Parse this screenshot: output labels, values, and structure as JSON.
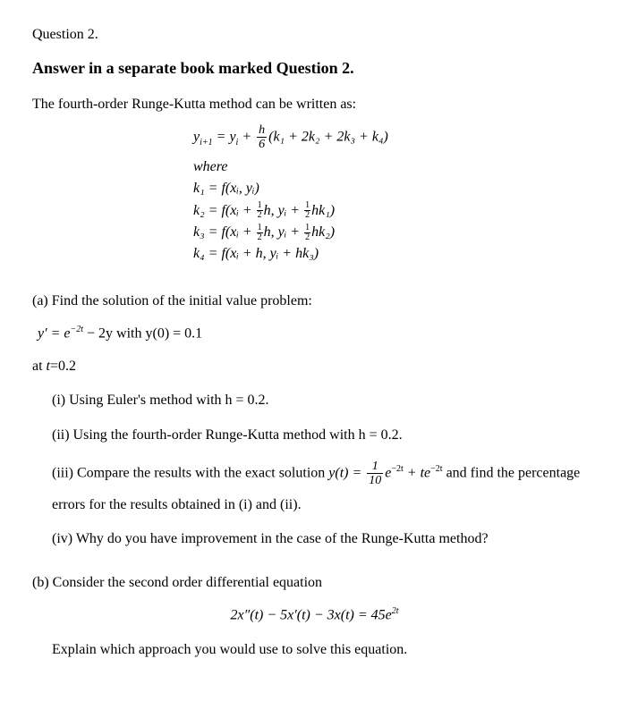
{
  "question_label": "Question 2.",
  "headline": "Answer in a separate book marked Question 2.",
  "intro": "The fourth-order Runge-Kutta method can be written as:",
  "rk4": {
    "main_lhs": "y",
    "main_sub1": "i+1",
    "main_eq": " = y",
    "main_sub2": "i",
    "main_plus": " + ",
    "frac_num": "h",
    "frac_den": "6",
    "main_paren": "(k₁ + 2k₂ + 2k₃ + k₄)",
    "where": "where",
    "k1": "k₁ = f(xᵢ, yᵢ)",
    "k2_pre": "k₂ = f(xᵢ + ",
    "k2_mid": "h, yᵢ + ",
    "k2_post": "hk₁)",
    "k3_pre": "k₃ = f(xᵢ + ",
    "k3_mid": "h, yᵢ + ",
    "k3_post": "hk₂)",
    "k4": "k₄ = f(xᵢ + h, yᵢ + hk₃)",
    "half_num": "1",
    "half_den": "2"
  },
  "part_a": {
    "label": "(a) Find the solution of the initial value problem:",
    "ivp_lhs": "y′ = e",
    "ivp_exp": "−2t",
    "ivp_rest": " − 2y  with  y(0) = 0.1",
    "at": "at t=0.2",
    "i": "(i)   Using Euler's method with h = 0.2.",
    "ii": "(ii)  Using the fourth-order Runge-Kutta method with h = 0.2.",
    "iii_pre": "(iii) Compare the results with the exact solution  ",
    "iii_yt": "y(t) = ",
    "iii_frac_num": "1",
    "iii_frac_den": "10",
    "iii_e1": "e",
    "iii_exp1": "−2t",
    "iii_plus": " + te",
    "iii_exp2": "−2t",
    "iii_post": " and find the percentage",
    "iii_line2": "errors for  the results obtained in (i) and (ii).",
    "iv": "(iv) Why do you have improvement in the case of the Runge-Kutta method?"
  },
  "part_b": {
    "label": "(b)  Consider the second order differential equation",
    "eq_pre": "2x″(t) − 5x′(t) − 3x(t) = 45e",
    "eq_exp": "2t",
    "explain": "Explain which approach you would use to solve this equation."
  }
}
